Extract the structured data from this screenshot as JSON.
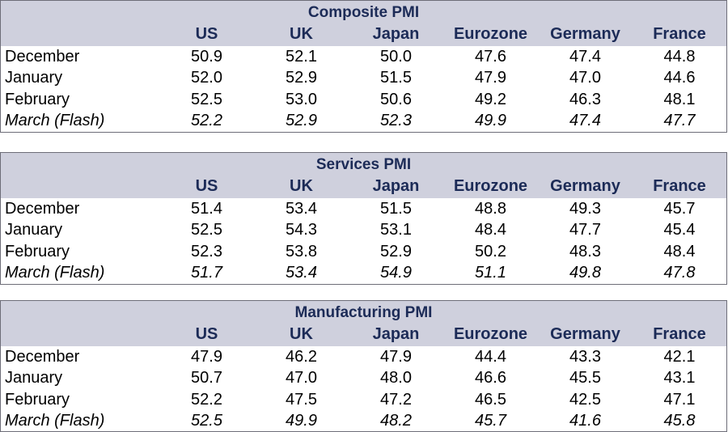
{
  "tables": [
    {
      "title": "Composite PMI",
      "columns": [
        "US",
        "UK",
        "Japan",
        "Eurozone",
        "Germany",
        "France"
      ],
      "rows": [
        {
          "label": "December",
          "values": [
            "50.9",
            "52.1",
            "50.0",
            "47.6",
            "47.4",
            "44.8"
          ]
        },
        {
          "label": "January",
          "values": [
            "52.0",
            "52.9",
            "51.5",
            "47.9",
            "47.0",
            "44.6"
          ]
        },
        {
          "label": "February",
          "values": [
            "52.5",
            "53.0",
            "50.6",
            "49.2",
            "46.3",
            "48.1"
          ]
        },
        {
          "label": "March (Flash)",
          "values": [
            "52.2",
            "52.9",
            "52.3",
            "49.9",
            "47.4",
            "47.7"
          ]
        }
      ]
    },
    {
      "title": "Services PMI",
      "columns": [
        "US",
        "UK",
        "Japan",
        "Eurozone",
        "Germany",
        "France"
      ],
      "rows": [
        {
          "label": "December",
          "values": [
            "51.4",
            "53.4",
            "51.5",
            "48.8",
            "49.3",
            "45.7"
          ]
        },
        {
          "label": "January",
          "values": [
            "52.5",
            "54.3",
            "53.1",
            "48.4",
            "47.7",
            "45.4"
          ]
        },
        {
          "label": "February",
          "values": [
            "52.3",
            "53.8",
            "52.9",
            "50.2",
            "48.3",
            "48.4"
          ]
        },
        {
          "label": "March (Flash)",
          "values": [
            "51.7",
            "53.4",
            "54.9",
            "51.1",
            "49.8",
            "47.8"
          ]
        }
      ]
    },
    {
      "title": "Manufacturing PMI",
      "columns": [
        "US",
        "UK",
        "Japan",
        "Eurozone",
        "Germany",
        "France"
      ],
      "rows": [
        {
          "label": "December",
          "values": [
            "47.9",
            "46.2",
            "47.9",
            "44.4",
            "43.3",
            "42.1"
          ]
        },
        {
          "label": "January",
          "values": [
            "50.7",
            "47.0",
            "48.0",
            "46.6",
            "45.5",
            "43.1"
          ]
        },
        {
          "label": "February",
          "values": [
            "52.2",
            "47.5",
            "47.2",
            "46.5",
            "42.5",
            "47.1"
          ]
        },
        {
          "label": "March (Flash)",
          "values": [
            "52.5",
            "49.9",
            "48.2",
            "45.7",
            "41.6",
            "45.8"
          ]
        }
      ]
    }
  ]
}
